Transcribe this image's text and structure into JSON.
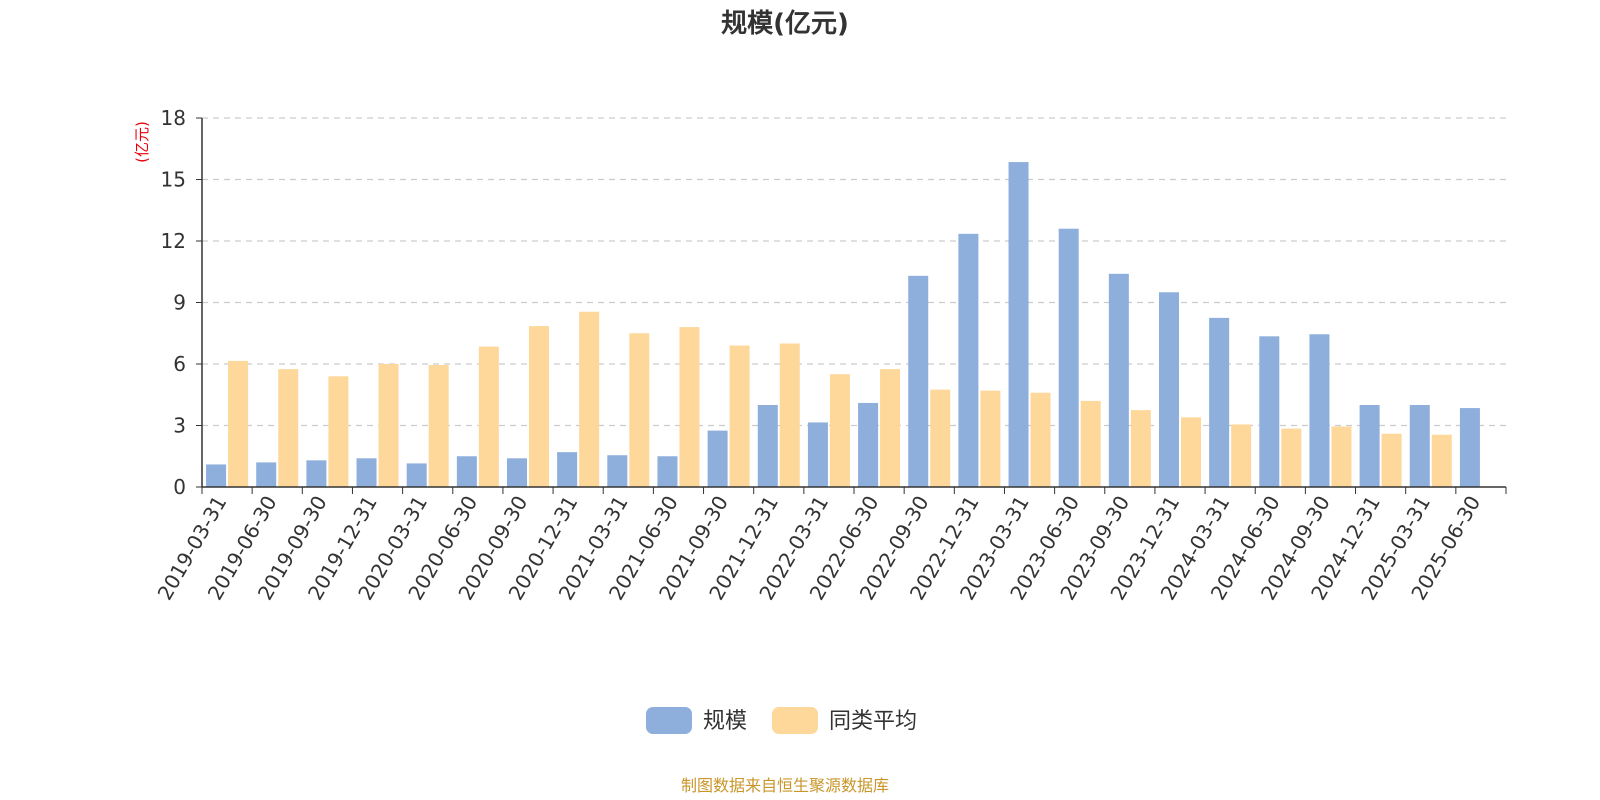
{
  "chart_data": {
    "type": "bar",
    "title": "规模(亿元)",
    "ylabel": "(亿元)",
    "xlabel": "",
    "ylim": [
      0,
      18
    ],
    "yticks": [
      0,
      3,
      6,
      9,
      12,
      15,
      18
    ],
    "grid": true,
    "legend_position": "bottom-center",
    "categories": [
      "2019-03-31",
      "2019-06-30",
      "2019-09-30",
      "2019-12-31",
      "2020-03-31",
      "2020-06-30",
      "2020-09-30",
      "2020-12-31",
      "2021-03-31",
      "2021-06-30",
      "2021-09-30",
      "2021-12-31",
      "2022-03-31",
      "2022-06-30",
      "2022-09-30",
      "2022-12-31",
      "2023-03-31",
      "2023-06-30",
      "2023-09-30",
      "2023-12-31",
      "2024-03-31",
      "2024-06-30",
      "2024-09-30",
      "2024-12-31",
      "2025-03-31",
      "2025-06-30"
    ],
    "series": [
      {
        "name": "规模",
        "color": "#8eaedb",
        "values": [
          1.1,
          1.2,
          1.3,
          1.4,
          1.15,
          1.5,
          1.4,
          1.7,
          1.55,
          1.5,
          2.75,
          4.0,
          3.15,
          4.1,
          10.3,
          12.35,
          15.85,
          12.6,
          10.4,
          9.5,
          8.25,
          7.35,
          7.45,
          4.0,
          4.0,
          3.85
        ]
      },
      {
        "name": "同类平均",
        "color": "#fdd89a",
        "values": [
          6.15,
          5.75,
          5.4,
          6.0,
          5.95,
          6.85,
          7.85,
          8.55,
          7.5,
          7.8,
          6.9,
          7.0,
          5.5,
          5.75,
          4.75,
          4.7,
          4.6,
          4.2,
          3.75,
          3.4,
          3.05,
          2.85,
          2.95,
          2.6,
          2.55,
          null
        ]
      }
    ]
  },
  "source_note": "制图数据来自恒生聚源数据库"
}
